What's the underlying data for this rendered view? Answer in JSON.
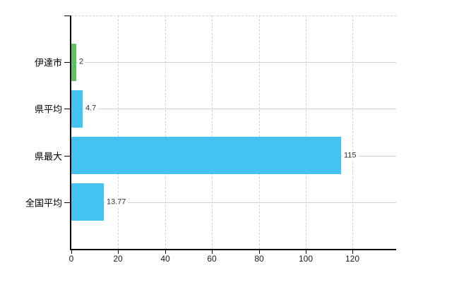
{
  "chart_data": {
    "type": "bar",
    "orientation": "horizontal",
    "title": "",
    "xlabel": "",
    "ylabel": "",
    "categories": [
      "伊達市",
      "県平均",
      "県最大",
      "全国平均"
    ],
    "values": [
      2,
      4.7,
      115,
      13.77
    ],
    "value_labels": [
      "2",
      "4.7",
      "115",
      "13.77"
    ],
    "bar_colors": [
      "#5fc166",
      "#44c2f0",
      "#44c2f0",
      "#44c2f0"
    ],
    "x_ticks": [
      0,
      20,
      40,
      60,
      80,
      100,
      120
    ],
    "x_tick_labels": [
      "0",
      "20",
      "40",
      "60",
      "80",
      "100",
      "120"
    ],
    "xlim": [
      0,
      138.6
    ],
    "grid": true,
    "legend": "none",
    "colors": {
      "gridline": "#d3d3d3",
      "axis": "#000000",
      "bar_blue": "#44c2f0",
      "bar_green": "#5fc166",
      "value_text": "#333333",
      "tick_text": "#1a1a1a",
      "category_text": "#000000",
      "background": "#ffffff"
    }
  }
}
